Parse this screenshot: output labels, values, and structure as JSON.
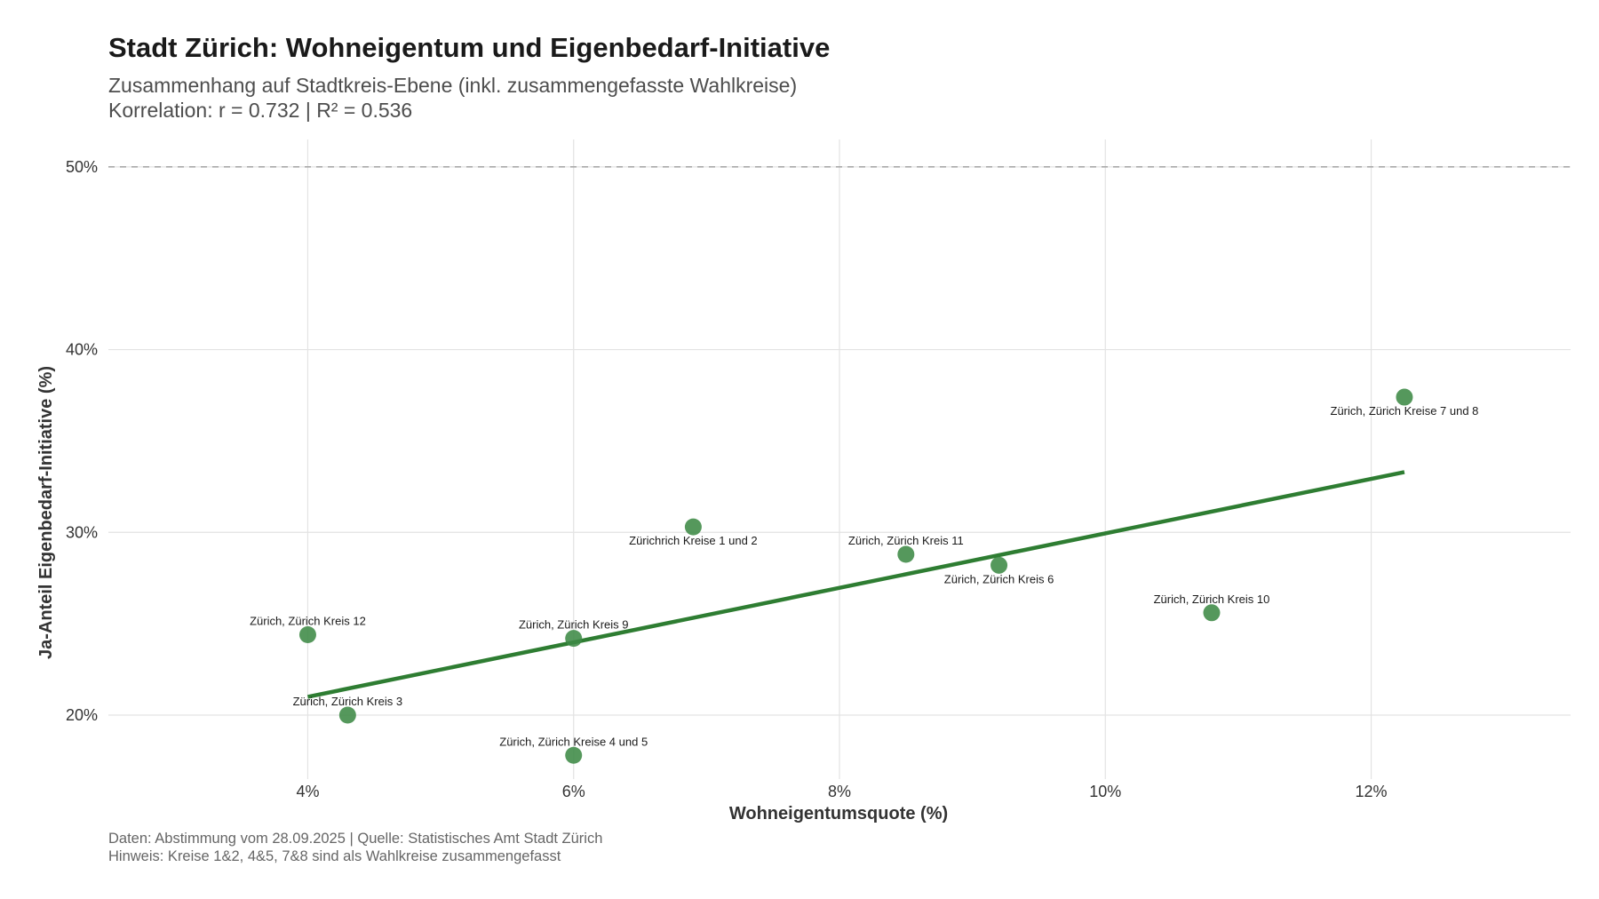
{
  "chart_data": {
    "type": "scatter",
    "title": "Stadt Zürich: Wohneigentum und Eigenbedarf-Initiative",
    "subtitle_lines": [
      "Zusammenhang auf Stadtkreis-Ebene (inkl. zusammengefasste Wahlkreise)",
      "Korrelation: r = 0.732 | R² = 0.536"
    ],
    "caption_lines": [
      "Daten: Abstimmung vom 28.09.2025 | Quelle: Statistisches Amt Stadt Zürich",
      "Hinweis: Kreise 1&2, 4&5, 7&8 sind als Wahlkreise zusammengefasst"
    ],
    "xlabel": "Wohneigentumsquote (%)",
    "ylabel": "Ja-Anteil Eigenbedarf-Initiative (%)",
    "xlim": [
      2.5,
      13.5
    ],
    "ylim": [
      16.5,
      51.5
    ],
    "xticks": [
      {
        "value": 4,
        "label": "4%"
      },
      {
        "value": 6,
        "label": "6%"
      },
      {
        "value": 8,
        "label": "8%"
      },
      {
        "value": 10,
        "label": "10%"
      },
      {
        "value": 12,
        "label": "12%"
      }
    ],
    "yticks": [
      {
        "value": 20,
        "label": "20%"
      },
      {
        "value": 30,
        "label": "30%"
      },
      {
        "value": 40,
        "label": "40%"
      },
      {
        "value": 50,
        "label": "50%"
      }
    ],
    "reference_line_y": 50,
    "grid": true,
    "point_color": "#3d8a45",
    "line_color": "#2e7d32",
    "reference_color": "#aaaaaa",
    "trend_line": {
      "x": [
        4.0,
        12.25
      ],
      "y": [
        21.0,
        33.3
      ]
    },
    "points": [
      {
        "x": 4.0,
        "y": 24.4,
        "label": "Zürich, Zürich Kreis 12",
        "label_pos": "above"
      },
      {
        "x": 4.3,
        "y": 20.0,
        "label": "Zürich, Zürich Kreis 3",
        "label_pos": "above"
      },
      {
        "x": 6.0,
        "y": 24.2,
        "label": "Zürich, Zürich Kreis 9",
        "label_pos": "above"
      },
      {
        "x": 6.0,
        "y": 17.8,
        "label": "Zürich, Zürich Kreise 4 und 5",
        "label_pos": "above"
      },
      {
        "x": 6.9,
        "y": 30.3,
        "label": "Zürichrich Kreise 1 und 2",
        "label_pos": "below"
      },
      {
        "x": 8.5,
        "y": 28.8,
        "label": "Zürich, Zürich Kreis 11",
        "label_pos": "above"
      },
      {
        "x": 9.2,
        "y": 28.2,
        "label": "Zürich, Zürich Kreis 6",
        "label_pos": "below"
      },
      {
        "x": 10.8,
        "y": 25.6,
        "label": "Zürich, Zürich Kreis 10",
        "label_pos": "above"
      },
      {
        "x": 12.25,
        "y": 37.4,
        "label": "Zürich, Zürich Kreise 7 und 8",
        "label_pos": "below"
      }
    ]
  }
}
